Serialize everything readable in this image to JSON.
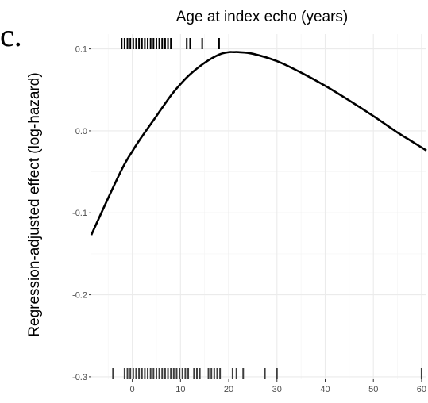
{
  "chart_data": {
    "type": "line",
    "panel_label": "c.",
    "title": "Age at index echo (years)",
    "xlabel": "",
    "ylabel": "Regression-adjusted effect (log-hazard)",
    "xlim": [
      -8.5,
      61
    ],
    "ylim": [
      -0.303,
      0.118
    ],
    "x_ticks": [
      0,
      10,
      20,
      30,
      40,
      50,
      60
    ],
    "x_tick_labels": [
      "0",
      "10",
      "20",
      "30",
      "40",
      "50",
      "60"
    ],
    "y_ticks": [
      0.1,
      0.0,
      -0.1,
      -0.2,
      -0.3
    ],
    "y_tick_labels": [
      "0.1",
      "0.0",
      "-0.1",
      "-0.2",
      "-0.3"
    ],
    "grid": true,
    "series": [
      {
        "x": [
          -8.5,
          -5,
          -2,
          0,
          2,
          5,
          8,
          10,
          12,
          15,
          18,
          20,
          21,
          22,
          25,
          30,
          35,
          40,
          45,
          50,
          55,
          58,
          61
        ],
        "y": [
          -0.127,
          -0.082,
          -0.045,
          -0.025,
          -0.007,
          0.018,
          0.043,
          0.057,
          0.069,
          0.083,
          0.093,
          0.096,
          0.096,
          0.096,
          0.094,
          0.085,
          0.071,
          0.055,
          0.037,
          0.018,
          -0.002,
          -0.013,
          -0.024
        ]
      }
    ],
    "rug_top": [
      -2.2,
      -1.6,
      -1.0,
      -0.4,
      0.2,
      0.8,
      1.4,
      2.0,
      2.6,
      3.2,
      3.8,
      4.4,
      5.0,
      5.6,
      6.2,
      6.8,
      7.4,
      8.0,
      11.3,
      12.0,
      14.5,
      18.0
    ],
    "rug_bottom": [
      -4.0,
      -1.6,
      -1.0,
      -0.4,
      0.2,
      0.8,
      1.4,
      2.0,
      2.6,
      3.2,
      3.8,
      4.4,
      5.0,
      5.6,
      6.2,
      6.8,
      7.4,
      8.0,
      8.6,
      9.2,
      9.8,
      10.4,
      11.0,
      11.6,
      12.8,
      13.4,
      14.0,
      15.8,
      16.4,
      17.0,
      17.6,
      18.2,
      20.8,
      21.6,
      23.0,
      27.5,
      30.0,
      60.0
    ]
  }
}
